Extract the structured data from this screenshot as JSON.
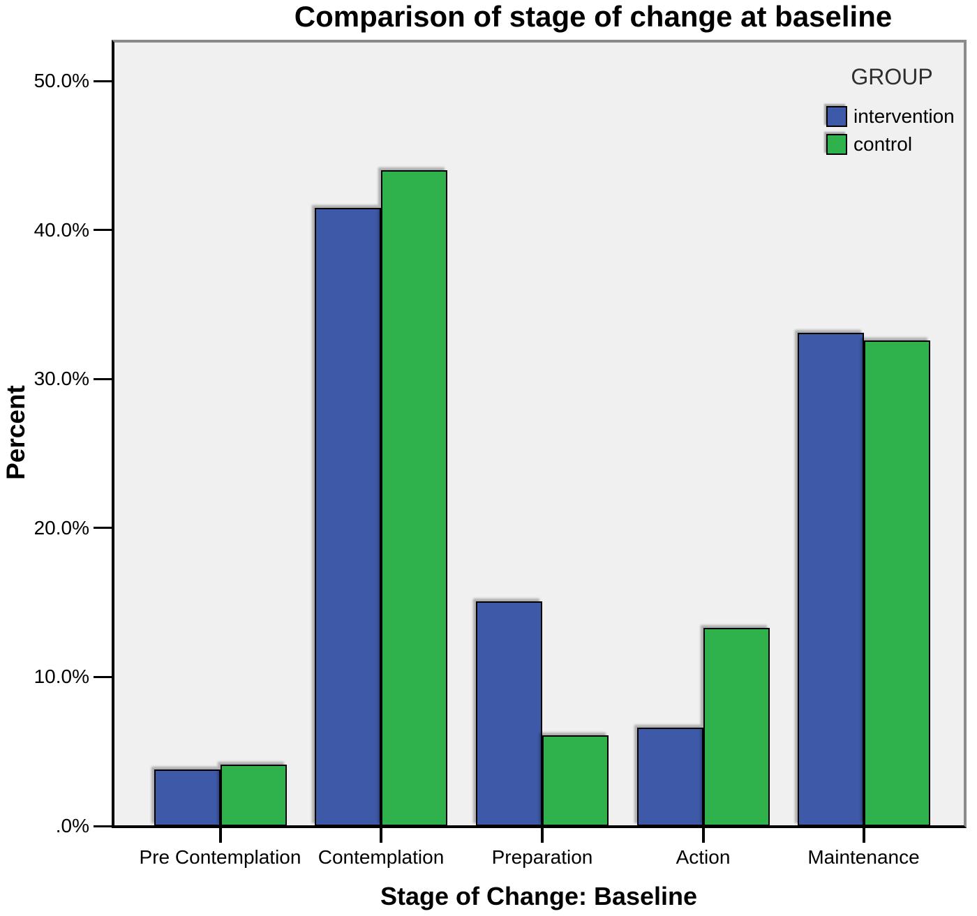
{
  "chart_data": {
    "type": "bar",
    "title": "Comparison of stage of change at baseline",
    "xlabel": "Stage of Change: Baseline",
    "ylabel": "Percent",
    "categories": [
      "Pre Contemplation",
      "Contemplation",
      "Preparation",
      "Action",
      "Maintenance"
    ],
    "series": [
      {
        "name": "intervention",
        "color": "#3e59a7",
        "values": [
          3.8,
          41.5,
          15.1,
          6.6,
          33.1
        ]
      },
      {
        "name": "control",
        "color": "#2fb14b",
        "values": [
          4.1,
          44.0,
          6.1,
          13.3,
          32.6
        ]
      }
    ],
    "ylim": [
      0,
      52.8
    ],
    "yticks": [
      0,
      10,
      20,
      30,
      40,
      50
    ],
    "ytick_labels": [
      ".0%",
      "10.0%",
      "20.0%",
      "30.0%",
      "40.0%",
      "50.0%"
    ],
    "legend_title": "GROUP",
    "legend_position": "top-right-inside",
    "grid": false,
    "plot_background": "#f0f0f0",
    "frame_color": "#8b8b8b",
    "axis_color": "#000000"
  }
}
